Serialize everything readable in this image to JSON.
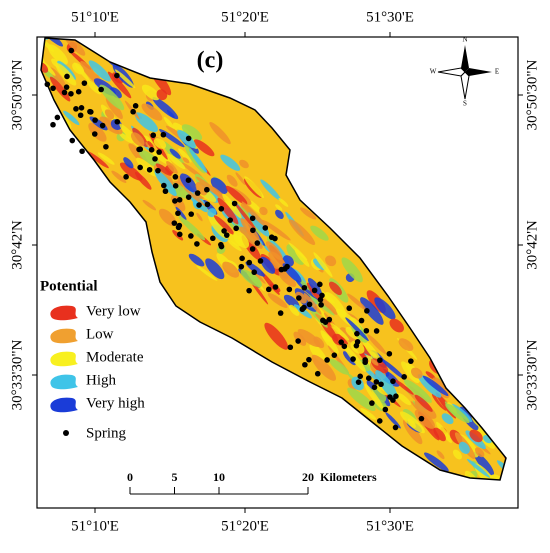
{
  "panel_label": "(c)",
  "axes": {
    "top": [
      "51°10'E",
      "51°20'E",
      "51°30'E"
    ],
    "bottom": [
      "51°10'E",
      "51°20'E",
      "51°30'E"
    ],
    "left": [
      "30°50'30\"N",
      "30°42'N",
      "30°33'30\"N"
    ],
    "right": [
      "30°50'30\"N",
      "30°42'N",
      "30°33'30\"N"
    ]
  },
  "compass": {
    "north": "N",
    "east": "E",
    "south": "S",
    "west": "W"
  },
  "legend": {
    "title": "Potential",
    "items": [
      "Very low",
      "Low",
      "Moderate",
      "High",
      "Very high"
    ],
    "point": "Spring"
  },
  "scale_bar": {
    "ticks": [
      0,
      5,
      10,
      20
    ],
    "unit": "Kilometers"
  }
}
